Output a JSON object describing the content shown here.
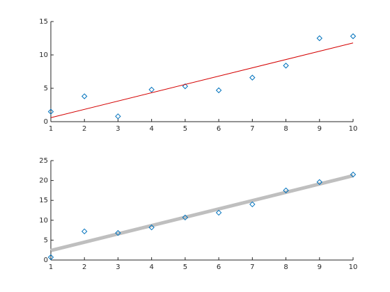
{
  "chart_data": [
    {
      "type": "scatter",
      "xlim": [
        1,
        10
      ],
      "xticks": [
        1,
        2,
        3,
        4,
        5,
        6,
        7,
        8,
        9,
        10
      ],
      "ylim": [
        0,
        15
      ],
      "yticks": [
        0,
        5,
        10,
        15
      ],
      "series": [
        {
          "style": "markers",
          "color": "#0072bd",
          "x": [
            1,
            2,
            3,
            4,
            5,
            6,
            7,
            8,
            9,
            10
          ],
          "values": [
            1.5,
            3.8,
            0.8,
            4.8,
            5.3,
            4.7,
            6.6,
            8.4,
            12.5,
            12.8
          ]
        },
        {
          "style": "line",
          "color": "#d40000",
          "line_width": 1,
          "x": [
            1,
            10
          ],
          "values": [
            0.6,
            11.8
          ]
        }
      ]
    },
    {
      "type": "scatter",
      "xlim": [
        1,
        10
      ],
      "xticks": [
        1,
        2,
        3,
        4,
        5,
        6,
        7,
        8,
        9,
        10
      ],
      "ylim": [
        0,
        25
      ],
      "yticks": [
        0,
        5,
        10,
        15,
        20,
        25
      ],
      "series": [
        {
          "style": "line",
          "color": "#bfbfbf",
          "line_width": 5,
          "x": [
            1,
            10
          ],
          "values": [
            2.4,
            21.2
          ]
        },
        {
          "style": "markers",
          "color": "#0072bd",
          "x": [
            1,
            2,
            3,
            4,
            5,
            6,
            7,
            8,
            9,
            10
          ],
          "values": [
            0.7,
            7.2,
            6.8,
            8.2,
            10.7,
            11.9,
            14.0,
            17.5,
            19.6,
            21.5
          ]
        }
      ]
    }
  ]
}
